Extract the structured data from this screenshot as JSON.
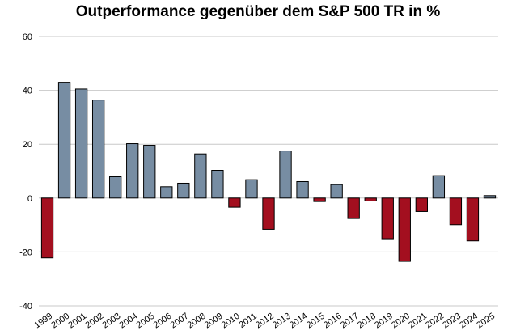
{
  "chart_data": {
    "type": "bar",
    "title": "Outperformance gegenüber dem S&P 500 TR in %",
    "xlabel": "",
    "ylabel": "",
    "ylim": [
      -40,
      60
    ],
    "yticks": [
      "-40",
      "-20",
      "0",
      "20",
      "40",
      "60"
    ],
    "grid": true,
    "categories": [
      "1999",
      "2000",
      "2001",
      "2002",
      "2003",
      "2004",
      "2005",
      "2006",
      "2007",
      "2008",
      "2009",
      "2010",
      "2011",
      "2012",
      "2013",
      "2014",
      "2015",
      "2016",
      "2017",
      "2018",
      "2019",
      "2020",
      "2021",
      "2022",
      "2023",
      "2024",
      "2025"
    ],
    "values": [
      -22.2,
      43.0,
      40.5,
      36.4,
      7.9,
      20.2,
      19.6,
      4.2,
      5.5,
      16.4,
      10.3,
      -3.4,
      6.8,
      -11.6,
      17.5,
      6.1,
      -1.3,
      5.0,
      -7.6,
      -1.1,
      -15.1,
      -23.5,
      -5.0,
      8.3,
      -9.9,
      -15.9,
      0.9
    ],
    "colors": {
      "positive": "#778da3",
      "negative": "#a30f1f",
      "outline": "#000000"
    }
  }
}
